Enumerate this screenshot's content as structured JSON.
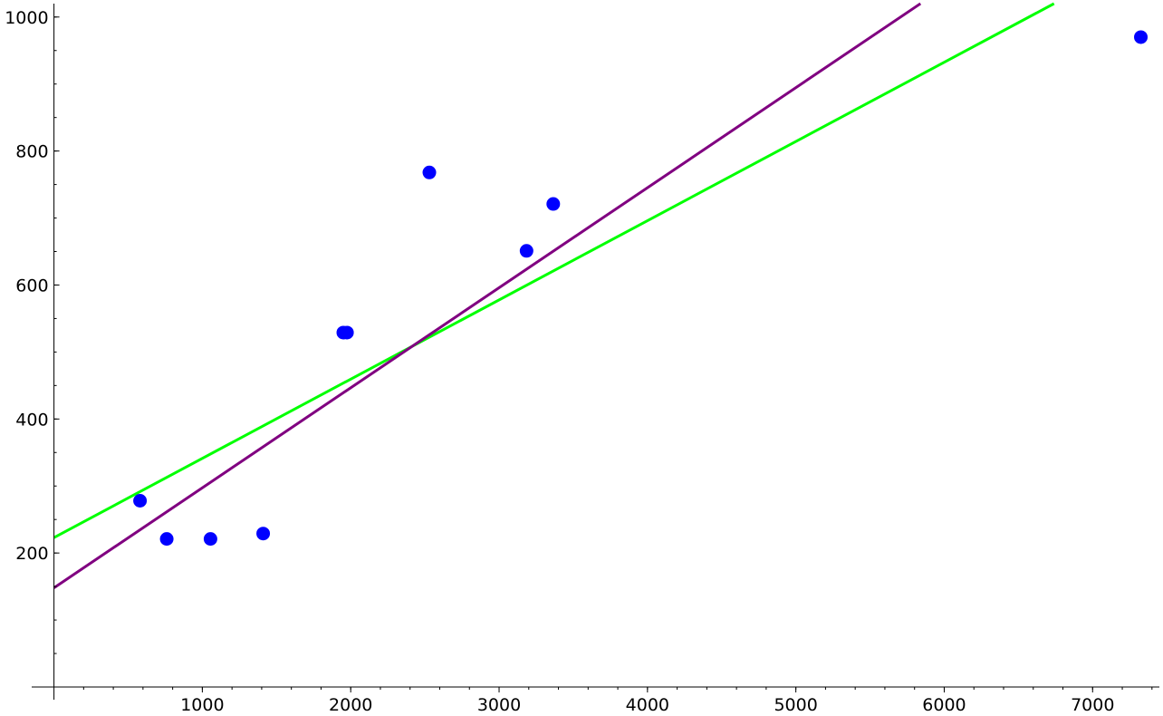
{
  "chart_data": {
    "type": "scatter",
    "title": "",
    "xlabel": "",
    "ylabel": "",
    "grid": false,
    "xlim": [
      -150,
      7450
    ],
    "ylim": [
      0,
      1020
    ],
    "x_ticks": [
      1000,
      2000,
      3000,
      4000,
      5000,
      6000,
      7000
    ],
    "y_ticks": [
      200,
      400,
      600,
      800,
      1000
    ],
    "x_minor_step": 200,
    "y_minor_step": 50,
    "series": [
      {
        "kind": "points",
        "color": "#0000ff",
        "x": [
          580,
          760,
          1055,
          1410,
          1950,
          1975,
          2530,
          3185,
          3365,
          7325
        ],
        "y": [
          278,
          221,
          221,
          229,
          529,
          529,
          768,
          651,
          721,
          970
        ]
      },
      {
        "kind": "line",
        "color": "#00ff00",
        "x": [
          0,
          6740
        ],
        "y": [
          223,
          1020
        ]
      },
      {
        "kind": "line",
        "color": "#800080",
        "x": [
          0,
          5840
        ],
        "y": [
          148,
          1020
        ]
      }
    ]
  }
}
